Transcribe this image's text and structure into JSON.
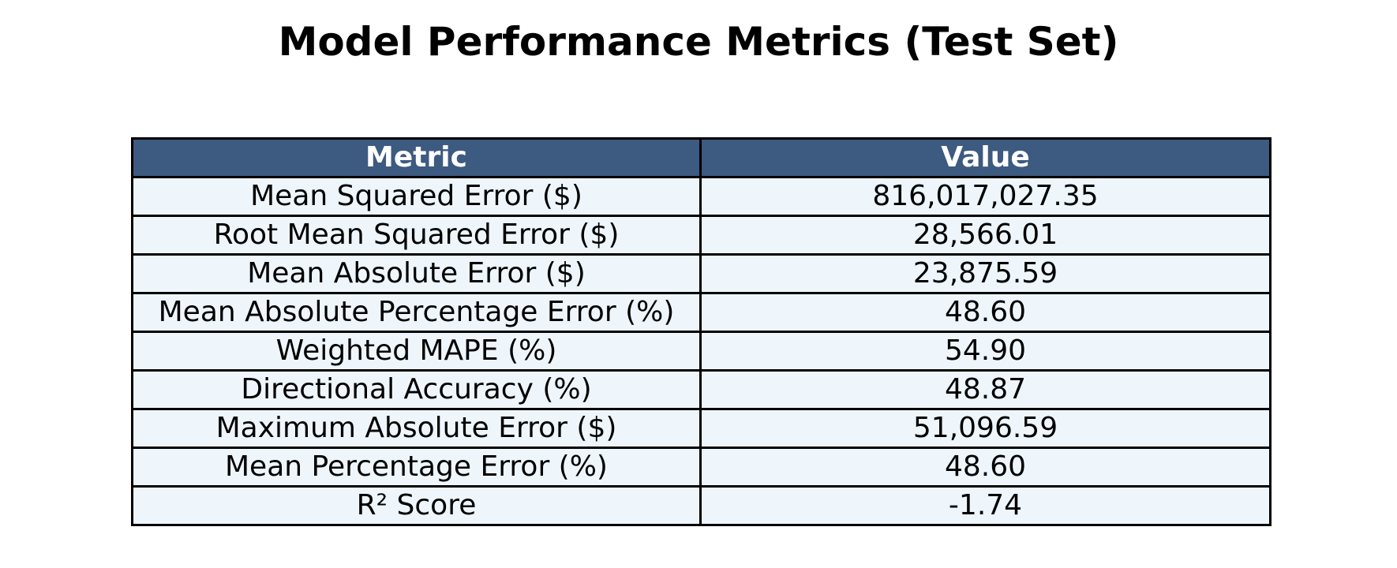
{
  "chart_data": {
    "type": "table",
    "title": "Model Performance Metrics (Test Set)",
    "columns": [
      "Metric",
      "Value"
    ],
    "rows": [
      [
        "Mean Squared Error ($)",
        "816,017,027.35"
      ],
      [
        "Root Mean Squared Error ($)",
        "28,566.01"
      ],
      [
        "Mean Absolute Error ($)",
        "23,875.59"
      ],
      [
        "Mean Absolute Percentage Error (%)",
        "48.60"
      ],
      [
        "Weighted MAPE (%)",
        "54.90"
      ],
      [
        "Directional Accuracy (%)",
        "48.87"
      ],
      [
        "Maximum Absolute Error ($)",
        "51,096.59"
      ],
      [
        "Mean Percentage Error (%)",
        "48.60"
      ],
      [
        "R² Score",
        "-1.74"
      ]
    ]
  },
  "colors": {
    "header_background": "#3d5a80",
    "header_text": "#ffffff",
    "cell_background": "#eef6fc",
    "border": "#000000"
  }
}
